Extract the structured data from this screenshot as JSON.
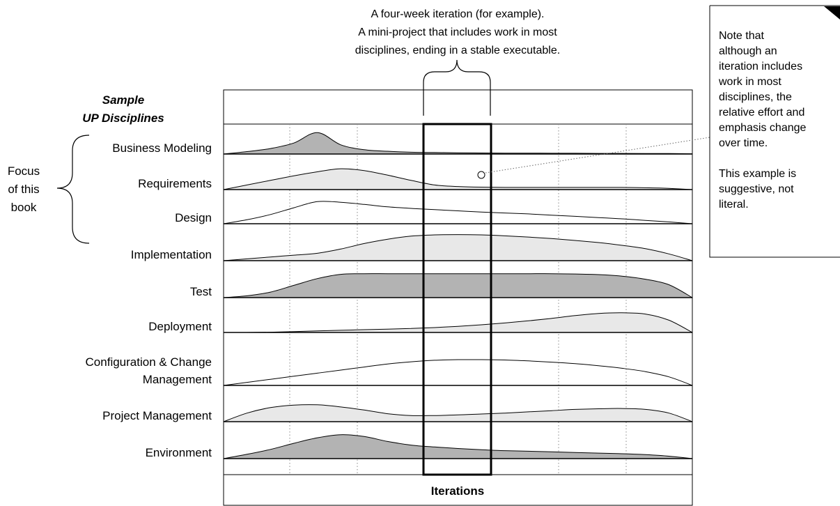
{
  "iteration_caption": [
    "A four-week iteration (for example).",
    "A mini-project that includes work in most",
    "disciplines, ending in a stable executable."
  ],
  "heading": [
    "Sample",
    "UP Disciplines"
  ],
  "focus_label": [
    "Focus",
    "of this",
    "book"
  ],
  "note": [
    "Note that",
    "although an",
    "iteration includes",
    "work in most",
    "disciplines, the",
    "relative effort and",
    "emphasis change",
    "over time.",
    "",
    "This example is",
    "suggestive, not",
    "literal."
  ],
  "footer_label": "Iterations",
  "colors": {
    "dark_fill": "#b3b3b3",
    "light_fill": "#e8e8e8",
    "stroke": "#000000"
  },
  "disciplines": [
    {
      "label": [
        "Business Modeling"
      ],
      "fill": "dark",
      "effort": [
        0,
        0.08,
        0.18,
        0.36,
        0.7,
        0.3,
        0.14,
        0.09,
        0.06,
        0.05,
        0.04,
        0.035,
        0.03,
        0.03,
        0.025,
        0.025,
        0.02,
        0.02,
        0.015,
        0.015,
        0.01
      ]
    },
    {
      "label": [
        "Requirements"
      ],
      "fill": "light",
      "effort": [
        0,
        0.15,
        0.3,
        0.45,
        0.58,
        0.68,
        0.62,
        0.47,
        0.3,
        0.15,
        0.1,
        0.08,
        0.07,
        0.07,
        0.07,
        0.07,
        0.07,
        0.07,
        0.06,
        0.04,
        0
      ]
    },
    {
      "label": [
        "Design"
      ],
      "fill": "none",
      "effort": [
        0,
        0.13,
        0.3,
        0.52,
        0.72,
        0.7,
        0.63,
        0.55,
        0.5,
        0.46,
        0.42,
        0.38,
        0.35,
        0.32,
        0.28,
        0.24,
        0.2,
        0.16,
        0.11,
        0.06,
        0
      ]
    },
    {
      "label": [
        "Implementation"
      ],
      "fill": "light",
      "effort": [
        0,
        0.06,
        0.12,
        0.18,
        0.24,
        0.38,
        0.56,
        0.7,
        0.8,
        0.84,
        0.85,
        0.84,
        0.81,
        0.77,
        0.72,
        0.66,
        0.59,
        0.5,
        0.39,
        0.22,
        0
      ]
    },
    {
      "label": [
        "Test"
      ],
      "fill": "dark",
      "effort": [
        0,
        0.06,
        0.18,
        0.4,
        0.62,
        0.76,
        0.78,
        0.78,
        0.78,
        0.78,
        0.78,
        0.78,
        0.78,
        0.78,
        0.78,
        0.77,
        0.75,
        0.7,
        0.6,
        0.42,
        0
      ]
    },
    {
      "label": [
        "Deployment"
      ],
      "fill": "light",
      "effort": [
        0,
        0,
        0.01,
        0.03,
        0.05,
        0.07,
        0.09,
        0.11,
        0.13,
        0.16,
        0.2,
        0.25,
        0.31,
        0.38,
        0.46,
        0.55,
        0.62,
        0.64,
        0.6,
        0.4,
        0
      ]
    },
    {
      "label": [
        "Configuration & Change",
        "Management"
      ],
      "fill": "none",
      "effort": [
        0,
        0.1,
        0.2,
        0.3,
        0.4,
        0.5,
        0.6,
        0.7,
        0.77,
        0.82,
        0.84,
        0.84,
        0.83,
        0.8,
        0.76,
        0.71,
        0.64,
        0.56,
        0.45,
        0.28,
        0
      ]
    },
    {
      "label": [
        "Project Management"
      ],
      "fill": "light",
      "effort": [
        0,
        0.28,
        0.46,
        0.54,
        0.55,
        0.48,
        0.38,
        0.26,
        0.2,
        0.2,
        0.22,
        0.25,
        0.28,
        0.32,
        0.36,
        0.4,
        0.42,
        0.43,
        0.4,
        0.28,
        0
      ]
    },
    {
      "label": [
        "Environment"
      ],
      "fill": "dark",
      "effort": [
        0,
        0.14,
        0.3,
        0.5,
        0.68,
        0.78,
        0.72,
        0.56,
        0.44,
        0.38,
        0.33,
        0.29,
        0.26,
        0.24,
        0.22,
        0.2,
        0.18,
        0.16,
        0.13,
        0.08,
        0
      ]
    }
  ]
}
